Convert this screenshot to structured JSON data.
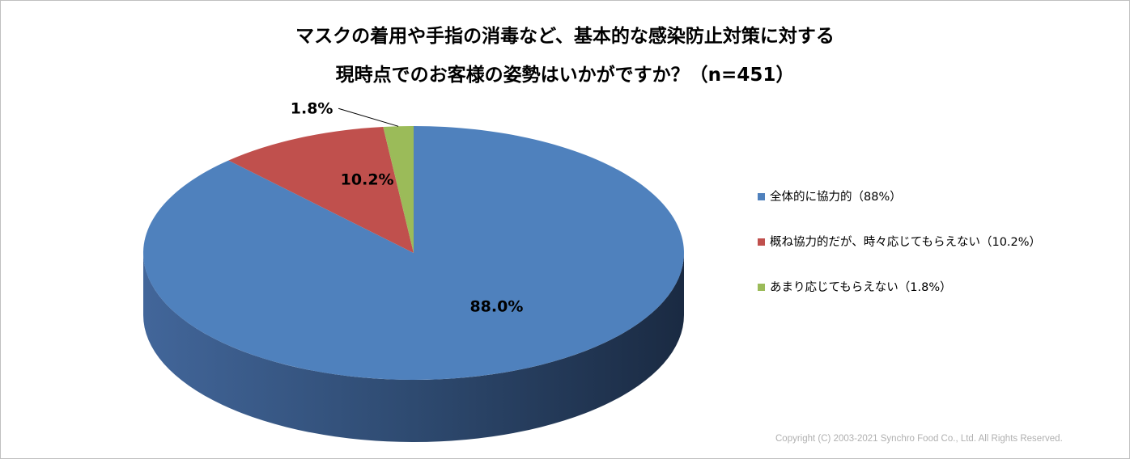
{
  "title_line1": "マスクの着用や手指の消毒など、基本的な感染防止対策に対する",
  "title_line2": "現時点でのお客様の姿勢はいかがですか？（n=451）",
  "chart_data": {
    "type": "pie",
    "title": "マスクの着用や手指の消毒など、基本的な感染防止対策に対する 現時点でのお客様の姿勢はいかがですか？（n=451）",
    "categories": [
      "全体的に協力的（88%）",
      "概ね協力的だが、時々応じてもらえない（10.2%）",
      "あまり応じてもらえない（1.8%）"
    ],
    "values": [
      88.0,
      10.2,
      1.8
    ],
    "data_labels": [
      "88.0%",
      "10.2%",
      "1.8%"
    ],
    "colors": [
      "#4F81BD",
      "#C0504D",
      "#9BBB59"
    ],
    "style": "3d-pie",
    "legend_position": "right"
  },
  "legend": [
    {
      "label": "全体的に協力的（88%）",
      "color": "#4F81BD"
    },
    {
      "label": "概ね協力的だが、時々応じてもらえない（10.2%）",
      "color": "#C0504D"
    },
    {
      "label": "あまり応じてもらえない（1.8%）",
      "color": "#9BBB59"
    }
  ],
  "copyright": "Copyright (C) 2003-2021   Synchro Food Co., Ltd. All Rights Reserved."
}
